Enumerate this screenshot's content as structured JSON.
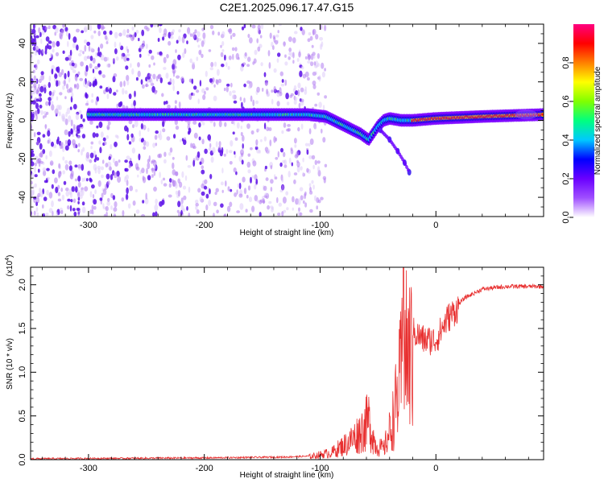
{
  "title": "C2E1.2025.096.17.47.G15",
  "chart_data": [
    {
      "type": "heatmap",
      "title": "C2E1.2025.096.17.47.G15",
      "xlabel": "Height of straight line (km)",
      "ylabel": "Frequency (Hz)",
      "xlim": [
        -350,
        93
      ],
      "ylim": [
        -50,
        50
      ],
      "xticks": [
        -300,
        -200,
        -100,
        0
      ],
      "yticks": [
        -40,
        -20,
        0,
        20,
        40
      ],
      "colorbar": {
        "label": "Normalized spectral amplitude",
        "range": [
          0,
          1
        ],
        "ticks": [
          "0.0",
          "0.2",
          "0.4",
          "0.6",
          "0.8"
        ],
        "tick_values": [
          0,
          0.2,
          0.4,
          0.6,
          0.8
        ],
        "colors": [
          "#ffffff",
          "#a050ff",
          "#6a00ff",
          "#0000ff",
          "#00c8ff",
          "#00ff80",
          "#80ff00",
          "#ffff00",
          "#ff8000",
          "#ff0000",
          "#ff0080"
        ]
      },
      "ridge": [
        {
          "x": -300,
          "y": 3
        },
        {
          "x": -250,
          "y": 3
        },
        {
          "x": -200,
          "y": 3
        },
        {
          "x": -150,
          "y": 3
        },
        {
          "x": -110,
          "y": 3
        },
        {
          "x": -95,
          "y": 2
        },
        {
          "x": -85,
          "y": -1
        },
        {
          "x": -75,
          "y": -4
        },
        {
          "x": -65,
          "y": -7
        },
        {
          "x": -58,
          "y": -10
        },
        {
          "x": -50,
          "y": -3
        },
        {
          "x": -45,
          "y": 0
        },
        {
          "x": -40,
          "y": 1
        },
        {
          "x": -30,
          "y": 0
        },
        {
          "x": -20,
          "y": 0
        },
        {
          "x": 0,
          "y": 1
        },
        {
          "x": 40,
          "y": 2
        },
        {
          "x": 93,
          "y": 3
        }
      ],
      "branch": [
        {
          "x": -48,
          "y": -5
        },
        {
          "x": -40,
          "y": -10
        },
        {
          "x": -33,
          "y": -16
        },
        {
          "x": -27,
          "y": -22
        },
        {
          "x": -23,
          "y": -27
        }
      ]
    },
    {
      "type": "line",
      "xlabel": "Height of straight line (km)",
      "ylabel": "SNR (10 * v/v)",
      "y_multiplier": "(x10",
      "y_multiplier_exp": "4",
      "y_multiplier_close": ")",
      "xlim": [
        -350,
        93
      ],
      "ylim": [
        0,
        2.2
      ],
      "xticks": [
        -300,
        -200,
        -100,
        0
      ],
      "yticks": [
        "0.0",
        "0.5",
        "1.0",
        "1.5",
        "2.0"
      ],
      "ytick_values": [
        0,
        0.5,
        1.0,
        1.5,
        2.0
      ],
      "color": "#e83030",
      "envelope": [
        {
          "x": -350,
          "y": 0.01
        },
        {
          "x": -200,
          "y": 0.02
        },
        {
          "x": -130,
          "y": 0.03
        },
        {
          "x": -110,
          "y": 0.04
        },
        {
          "x": -90,
          "y": 0.1
        },
        {
          "x": -75,
          "y": 0.25
        },
        {
          "x": -65,
          "y": 0.4
        },
        {
          "x": -58,
          "y": 0.55
        },
        {
          "x": -52,
          "y": 0.2
        },
        {
          "x": -45,
          "y": 0.15
        },
        {
          "x": -38,
          "y": 0.5
        },
        {
          "x": -32,
          "y": 1.0
        },
        {
          "x": -28,
          "y": 1.5
        },
        {
          "x": -20,
          "y": 1.5
        },
        {
          "x": -10,
          "y": 1.4
        },
        {
          "x": 0,
          "y": 1.4
        },
        {
          "x": 10,
          "y": 1.65
        },
        {
          "x": 25,
          "y": 1.85
        },
        {
          "x": 40,
          "y": 1.95
        },
        {
          "x": 60,
          "y": 1.98
        },
        {
          "x": 93,
          "y": 1.98
        }
      ],
      "spike": {
        "x": -28,
        "y": 2.2
      }
    }
  ]
}
